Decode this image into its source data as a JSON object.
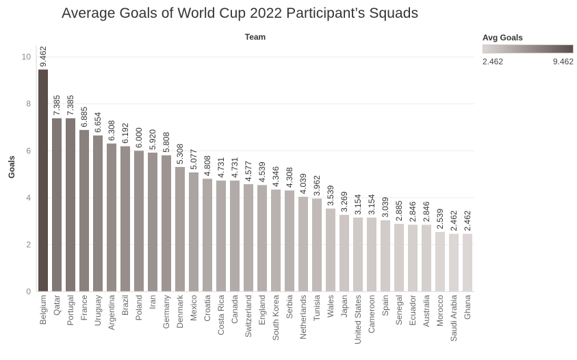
{
  "chart_data": {
    "type": "bar",
    "title": "Average Goals of World Cup 2022 Participant’s Squads",
    "column_header": "Team",
    "ylabel": "Goals",
    "ylim": [
      0,
      10.5
    ],
    "yticks": [
      0,
      2,
      4,
      6,
      8,
      10
    ],
    "grid": true,
    "categories": [
      "Belgium",
      "Qatar",
      "Portugal",
      "France",
      "Uruguay",
      "Argentina",
      "Brazil",
      "Poland",
      "Iran",
      "Germany",
      "Denmark",
      "Mexico",
      "Croatia",
      "Costa Rica",
      "Canada",
      "Switzerland",
      "England",
      "South Korea",
      "Serbia",
      "Netherlands",
      "Tunisia",
      "Wales",
      "Japan",
      "United States",
      "Cameroon",
      "Spain",
      "Senegal",
      "Ecuador",
      "Australia",
      "Morocco",
      "Saudi Arabia",
      "Ghana"
    ],
    "values": [
      9.462,
      7.385,
      7.385,
      6.885,
      6.654,
      6.308,
      6.192,
      6.0,
      5.92,
      5.808,
      5.308,
      5.077,
      4.808,
      4.731,
      4.731,
      4.577,
      4.539,
      4.346,
      4.308,
      4.039,
      3.962,
      3.539,
      3.269,
      3.154,
      3.154,
      3.039,
      2.885,
      2.846,
      2.846,
      2.539,
      2.462,
      2.462
    ],
    "value_labels": [
      "9.462",
      "7.385",
      "7.385",
      "6.885",
      "6.654",
      "6.308",
      "6.192",
      "6.000",
      "5.920",
      "5.808",
      "5.308",
      "5.077",
      "4.808",
      "4.731",
      "4.731",
      "4.577",
      "4.539",
      "4.346",
      "4.308",
      "4.039",
      "3.962",
      "3.539",
      "3.269",
      "3.154",
      "3.154",
      "3.039",
      "2.885",
      "2.846",
      "2.846",
      "2.539",
      "2.462",
      "2.462"
    ],
    "color_scale": {
      "title": "Avg Goals",
      "min": 2.462,
      "max": 9.462,
      "min_label": "2.462",
      "max_label": "9.462",
      "color_min": "#dcd6d4",
      "color_max": "#5b4f4c"
    },
    "legend_position": "top-right"
  }
}
